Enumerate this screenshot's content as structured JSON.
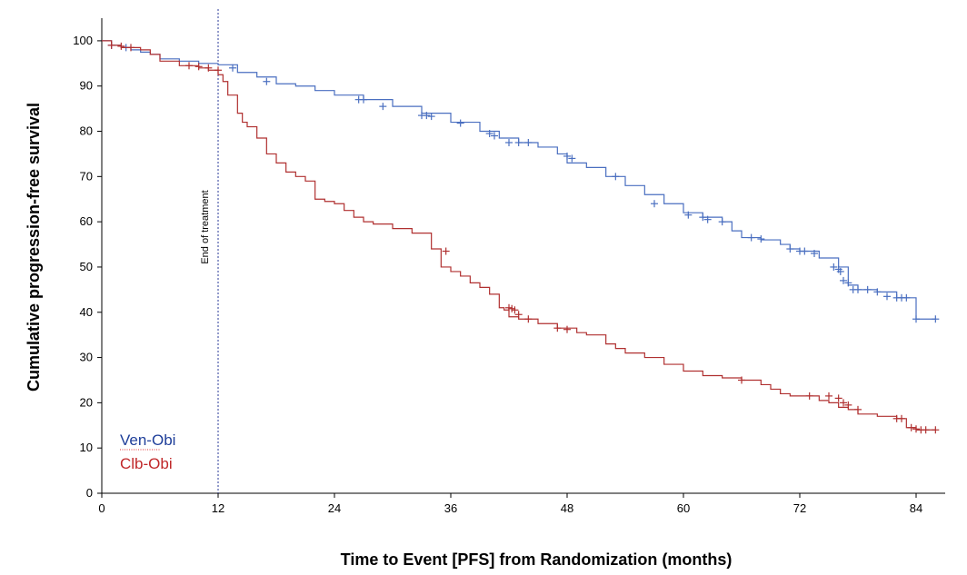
{
  "chart_data": {
    "type": "line",
    "title": "",
    "xlabel": "Time to Event [PFS] from Randomization (months)",
    "ylabel": "Cumulative progression-free survival",
    "xlim": [
      0,
      87
    ],
    "ylim": [
      0,
      105
    ],
    "xticks": [
      0,
      12,
      24,
      36,
      48,
      60,
      72,
      84
    ],
    "yticks": [
      0,
      10,
      20,
      30,
      40,
      50,
      60,
      70,
      80,
      90,
      100
    ],
    "grid": false,
    "legend_position": "bottom-left",
    "annotations": [
      {
        "text": "End of treatment",
        "x": 12
      }
    ],
    "series": [
      {
        "name": "Ven-Obi",
        "color": "#4a6fc0",
        "legend_color": "#1f3f9a",
        "x": [
          0,
          1,
          2,
          3,
          4,
          5,
          6,
          8,
          10,
          12,
          14,
          16,
          18,
          20,
          22,
          24,
          27,
          30,
          33,
          36,
          39,
          41,
          43,
          45,
          47,
          48,
          50,
          52,
          54,
          56,
          58,
          60,
          62,
          64,
          65,
          66,
          68,
          70,
          71,
          72,
          74,
          76,
          77,
          78,
          80,
          82,
          83,
          84,
          86
        ],
        "y": [
          100,
          99,
          98.5,
          98,
          97.5,
          97,
          96,
          95.5,
          95,
          94.7,
          93,
          92,
          90.5,
          90,
          89,
          88,
          87,
          85.5,
          84,
          82,
          80,
          78.5,
          77.5,
          76.5,
          75,
          73,
          72,
          70,
          68,
          66,
          64,
          62,
          61,
          60,
          58,
          56.5,
          56,
          55,
          54,
          53.5,
          52,
          50,
          46,
          45,
          44.5,
          43.2,
          43.2,
          38.5,
          38.5
        ],
        "censor_x": [
          1,
          2.5,
          13.5,
          17,
          26.5,
          27,
          29,
          33,
          33.5,
          34,
          37,
          40,
          40.5,
          42,
          43,
          44,
          48,
          48.5,
          53,
          57,
          60.5,
          62,
          62.5,
          64,
          67,
          68,
          71,
          72,
          72.5,
          73.5,
          75.5,
          76,
          76.2,
          76.5,
          77,
          77.5,
          78,
          79,
          80,
          81,
          82,
          82.5,
          83,
          84,
          86
        ],
        "censor_y": [
          99,
          98.5,
          94,
          91,
          87,
          87,
          85.5,
          83.5,
          83.5,
          83.3,
          81.8,
          79.5,
          79,
          77.5,
          77.5,
          77.5,
          74.5,
          74,
          70,
          64,
          61.5,
          61,
          60.5,
          60,
          56.5,
          56.2,
          54,
          53.5,
          53.5,
          53,
          50,
          49.5,
          49,
          47,
          46.5,
          45,
          45,
          45,
          44.5,
          43.5,
          43.2,
          43.2,
          43.2,
          38.5,
          38.5
        ]
      },
      {
        "name": "Clb-Obi",
        "color": "#b03030",
        "legend_color": "#c0282a",
        "x": [
          0,
          1,
          2,
          4,
          5,
          6,
          8,
          10,
          11,
          12,
          12.5,
          13,
          14,
          14.5,
          15,
          16,
          17,
          18,
          19,
          20,
          21,
          22,
          23,
          24,
          25,
          26,
          27,
          28,
          30,
          32,
          34,
          35,
          36,
          37,
          38,
          39,
          40,
          41,
          41.5,
          42,
          43,
          45,
          47,
          49,
          50,
          52,
          53,
          54,
          56,
          58,
          60,
          62,
          64,
          66,
          68,
          69,
          70,
          71,
          72,
          74,
          75,
          76,
          77,
          78,
          80,
          82,
          83,
          84,
          86
        ],
        "y": [
          100,
          99,
          98.5,
          98,
          97,
          95.5,
          94.5,
          94,
          93.5,
          92.5,
          91,
          88,
          84,
          82,
          81,
          78.5,
          75,
          73,
          71,
          70,
          69,
          65,
          64.5,
          64,
          62.5,
          61,
          60,
          59.5,
          58.5,
          57.5,
          54,
          50,
          49,
          48,
          46.5,
          45.5,
          44,
          41,
          40.5,
          39,
          38.5,
          37.5,
          36.5,
          35.5,
          35,
          33,
          32,
          31,
          30,
          28.5,
          27,
          26,
          25.5,
          25,
          24,
          23,
          22,
          21.5,
          21.5,
          20.5,
          20,
          19,
          18.5,
          17.5,
          17,
          16.5,
          14.5,
          14,
          14
        ],
        "censor_x": [
          1,
          2,
          3,
          9,
          10,
          11,
          12,
          35.5,
          42,
          42.3,
          42.6,
          43,
          44,
          47,
          48,
          66,
          73,
          75,
          76,
          76.5,
          77,
          78,
          82,
          82.5,
          83.5,
          84,
          84.5,
          85,
          86
        ],
        "censor_y": [
          99,
          98.8,
          98.5,
          94.5,
          94.3,
          94,
          93.5,
          53.5,
          41,
          40.8,
          40.5,
          39.5,
          38.5,
          36.5,
          36.2,
          25,
          21.5,
          21.5,
          21,
          20,
          19.5,
          18.5,
          16.5,
          16.5,
          14.5,
          14.2,
          14,
          14,
          14
        ]
      }
    ]
  }
}
